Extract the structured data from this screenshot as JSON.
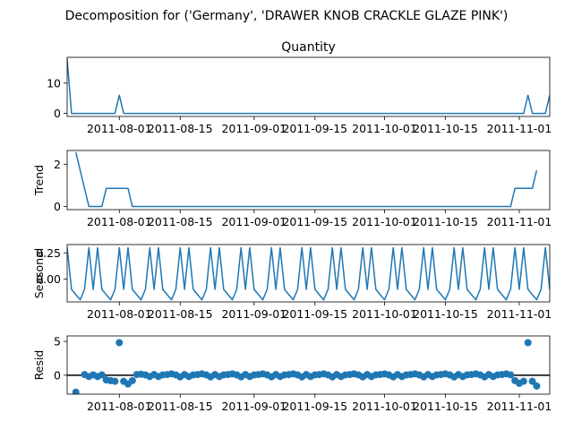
{
  "suptitle": "Decomposition for ('Germany', 'DRAWER KNOB CRACKLE GLAZE PINK')",
  "colors": {
    "series": "#1f77b4",
    "axis": "#000000",
    "zero_line": "#000000"
  },
  "chart_data": [
    {
      "type": "line",
      "title": "Quantity",
      "ylabel": "",
      "yticks": [
        0,
        10
      ],
      "ylim": [
        -1,
        18.5
      ],
      "x_dates": [
        "2011-07-20",
        "2011-07-31",
        "2011-08-01",
        "2011-08-31",
        "2011-11-02",
        "2011-11-03",
        "2011-11-06"
      ],
      "values": [
        18,
        0,
        6,
        0,
        0,
        6,
        0
      ],
      "note_series_end": "2011-11-08",
      "series": [
        {
          "name": "",
          "points": [
            [
              "2011-07-20",
              18
            ],
            [
              "2011-07-21",
              0
            ],
            [
              "2011-07-30",
              0
            ],
            [
              "2011-07-31",
              0
            ],
            [
              "2011-08-01",
              6
            ],
            [
              "2011-08-02",
              0
            ],
            [
              "2011-11-02",
              0
            ],
            [
              "2011-11-03",
              6
            ],
            [
              "2011-11-04",
              0
            ],
            [
              "2011-11-07",
              0
            ],
            [
              "2011-11-08",
              6
            ]
          ]
        }
      ]
    },
    {
      "type": "line",
      "title": "",
      "ylabel": "Trend",
      "yticks": [
        0,
        2
      ],
      "ylim": [
        -0.15,
        2.65
      ],
      "series": [
        {
          "name": "",
          "points": [
            [
              "2011-07-22",
              2.57
            ],
            [
              "2011-07-25",
              0
            ],
            [
              "2011-07-28",
              0
            ],
            [
              "2011-07-29",
              0.86
            ],
            [
              "2011-08-03",
              0.86
            ],
            [
              "2011-08-04",
              0
            ],
            [
              "2011-10-30",
              0
            ],
            [
              "2011-10-31",
              0.86
            ],
            [
              "2011-11-04",
              0.86
            ],
            [
              "2011-11-05",
              1.71
            ]
          ]
        }
      ]
    },
    {
      "type": "line",
      "title": "",
      "ylabel": "Seasonal",
      "yticks": [
        0.25,
        0.0
      ],
      "ytick_labels": [
        "0.25",
        "0.00"
      ],
      "ylim": [
        -0.22,
        0.33
      ],
      "period_values": [
        0.3,
        -0.1,
        -0.15,
        -0.2,
        -0.1,
        0.3,
        -0.1,
        -0.15
      ],
      "series": [
        {
          "name": "",
          "start": "2011-07-20",
          "end": "2011-11-08",
          "pattern": [
            0.3,
            -0.1,
            -0.15,
            -0.2,
            -0.1,
            0.3,
            -0.1
          ]
        }
      ]
    },
    {
      "type": "scatter",
      "title": "",
      "ylabel": "Resid",
      "yticks": [
        0,
        5
      ],
      "ylim": [
        -2.8,
        5.8
      ],
      "zero_line": true,
      "series": [
        {
          "name": "",
          "points": [
            [
              "2011-07-22",
              -2.5
            ],
            [
              "2011-07-24",
              0.1
            ],
            [
              "2011-07-25",
              -0.2
            ],
            [
              "2011-07-26",
              0.05
            ],
            [
              "2011-07-27",
              -0.2
            ],
            [
              "2011-07-28",
              0.05
            ],
            [
              "2011-07-29",
              -0.7
            ],
            [
              "2011-07-30",
              -0.8
            ],
            [
              "2011-07-31",
              -0.9
            ],
            [
              "2011-08-01",
              4.8
            ],
            [
              "2011-08-02",
              -0.9
            ],
            [
              "2011-08-03",
              -1.3
            ],
            [
              "2011-08-04",
              -0.8
            ],
            [
              "2011-08-05",
              0.1
            ],
            [
              "2011-08-06",
              0.15
            ],
            [
              "2011-08-07",
              0.05
            ],
            [
              "2011-08-08",
              -0.2
            ],
            [
              "2011-08-09",
              0.1
            ],
            [
              "2011-08-10",
              -0.2
            ],
            [
              "2011-08-11",
              0.05
            ],
            [
              "2011-08-12",
              0.1
            ],
            [
              "2011-08-13",
              0.2
            ],
            [
              "2011-08-14",
              0.05
            ],
            [
              "2011-08-15",
              -0.25
            ],
            [
              "2011-08-16",
              0.1
            ],
            [
              "2011-08-17",
              -0.2
            ],
            [
              "2011-08-18",
              0.05
            ],
            [
              "2011-08-19",
              0.1
            ],
            [
              "2011-08-20",
              0.2
            ],
            [
              "2011-08-21",
              0.05
            ],
            [
              "2011-08-22",
              -0.25
            ],
            [
              "2011-08-23",
              0.1
            ],
            [
              "2011-08-24",
              -0.2
            ],
            [
              "2011-08-25",
              0.05
            ],
            [
              "2011-08-26",
              0.1
            ],
            [
              "2011-08-27",
              0.2
            ],
            [
              "2011-08-28",
              0.05
            ],
            [
              "2011-08-29",
              -0.25
            ],
            [
              "2011-08-30",
              0.1
            ],
            [
              "2011-08-31",
              -0.2
            ],
            [
              "2011-09-01",
              0.05
            ],
            [
              "2011-09-02",
              0.1
            ],
            [
              "2011-09-03",
              0.2
            ],
            [
              "2011-09-04",
              0.05
            ],
            [
              "2011-09-05",
              -0.25
            ],
            [
              "2011-09-06",
              0.1
            ],
            [
              "2011-09-07",
              -0.2
            ],
            [
              "2011-09-08",
              0.05
            ],
            [
              "2011-09-09",
              0.1
            ],
            [
              "2011-09-10",
              0.2
            ],
            [
              "2011-09-11",
              0.05
            ],
            [
              "2011-09-12",
              -0.25
            ],
            [
              "2011-09-13",
              0.1
            ],
            [
              "2011-09-14",
              -0.2
            ],
            [
              "2011-09-15",
              0.05
            ],
            [
              "2011-09-16",
              0.1
            ],
            [
              "2011-09-17",
              0.2
            ],
            [
              "2011-09-18",
              0.05
            ],
            [
              "2011-09-19",
              -0.25
            ],
            [
              "2011-09-20",
              0.1
            ],
            [
              "2011-09-21",
              -0.2
            ],
            [
              "2011-09-22",
              0.05
            ],
            [
              "2011-09-23",
              0.1
            ],
            [
              "2011-09-24",
              0.2
            ],
            [
              "2011-09-25",
              0.05
            ],
            [
              "2011-09-26",
              -0.25
            ],
            [
              "2011-09-27",
              0.1
            ],
            [
              "2011-09-28",
              -0.2
            ],
            [
              "2011-09-29",
              0.05
            ],
            [
              "2011-09-30",
              0.1
            ],
            [
              "2011-10-01",
              0.2
            ],
            [
              "2011-10-02",
              0.05
            ],
            [
              "2011-10-03",
              -0.25
            ],
            [
              "2011-10-04",
              0.1
            ],
            [
              "2011-10-05",
              -0.2
            ],
            [
              "2011-10-06",
              0.05
            ],
            [
              "2011-10-07",
              0.1
            ],
            [
              "2011-10-08",
              0.2
            ],
            [
              "2011-10-09",
              0.05
            ],
            [
              "2011-10-10",
              -0.25
            ],
            [
              "2011-10-11",
              0.1
            ],
            [
              "2011-10-12",
              -0.2
            ],
            [
              "2011-10-13",
              0.05
            ],
            [
              "2011-10-14",
              0.1
            ],
            [
              "2011-10-15",
              0.2
            ],
            [
              "2011-10-16",
              0.05
            ],
            [
              "2011-10-17",
              -0.25
            ],
            [
              "2011-10-18",
              0.1
            ],
            [
              "2011-10-19",
              -0.2
            ],
            [
              "2011-10-20",
              0.05
            ],
            [
              "2011-10-21",
              0.1
            ],
            [
              "2011-10-22",
              0.2
            ],
            [
              "2011-10-23",
              0.05
            ],
            [
              "2011-10-24",
              -0.25
            ],
            [
              "2011-10-25",
              0.1
            ],
            [
              "2011-10-26",
              -0.2
            ],
            [
              "2011-10-27",
              0.05
            ],
            [
              "2011-10-28",
              0.1
            ],
            [
              "2011-10-29",
              0.2
            ],
            [
              "2011-10-30",
              0.05
            ],
            [
              "2011-10-31",
              -0.8
            ],
            [
              "2011-11-01",
              -1.2
            ],
            [
              "2011-11-02",
              -0.9
            ],
            [
              "2011-11-03",
              4.8
            ],
            [
              "2011-11-04",
              -0.9
            ],
            [
              "2011-11-05",
              -1.6
            ]
          ]
        }
      ]
    }
  ],
  "x_axis": {
    "range": [
      "2011-07-20",
      "2011-11-08"
    ],
    "tick_dates": [
      "2011-08-01",
      "2011-08-15",
      "2011-09-01",
      "2011-09-15",
      "2011-10-01",
      "2011-10-15",
      "2011-11-01"
    ],
    "tick_labels": [
      "2011-08-01",
      "2011-08-15",
      "2011-09-01",
      "2011-09-15",
      "2011-10-01",
      "2011-10-15",
      "2011-11-01"
    ]
  }
}
